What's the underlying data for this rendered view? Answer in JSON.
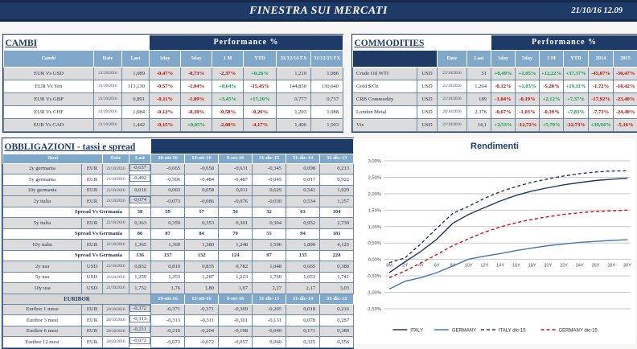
{
  "header": {
    "title": "FINESTRA SUI MERCATI",
    "datetime": "21/10/16 12.09"
  },
  "colors": {
    "navy": "#1e3a67",
    "steel": "#7fa8cb",
    "negative": "#c00000",
    "positive": "#00a050",
    "row_shade": "#dcdcdc",
    "grid": "#c9c9c9"
  },
  "cambi": {
    "title": "CAMBI",
    "perf_label": "Performance  %",
    "columns": [
      "Cambi",
      "Date",
      "Last",
      "1day",
      "5day",
      "1 M",
      "YTD",
      "31/12/14 FX",
      "31/12/15  FX"
    ],
    "rows": [
      [
        "EUR Vs USD",
        "21/10/2016",
        "1,089",
        "-0,47%",
        "-0,73%",
        "-2,37%",
        "+0,26%",
        "1,210",
        "1,086"
      ],
      [
        "EUR Vs Yen",
        "21/10/2016",
        "113,130",
        "-0,57%",
        "-1,04%",
        "+0,64%",
        "-15,45%",
        "144,850",
        "130,640"
      ],
      [
        "EUR Vs GBP",
        "21/10/2016",
        "0,891",
        "-0,11%",
        "-1,09%",
        "+3,45%",
        "+17,20%",
        "0,777",
        "0,737"
      ],
      [
        "EUR Vs CHF",
        "21/10/2016",
        "1,084",
        "-0,12%",
        "-0,30%",
        "-0,58%",
        "-0,26%",
        "1,203",
        "1,088"
      ],
      [
        "EUR Vs CAD",
        "21/10/2016",
        "1,442",
        "-0,15%",
        "+0,05%",
        "-2,08%",
        "-4,17%",
        "1,406",
        "1,503"
      ]
    ]
  },
  "commodities": {
    "title": "COMMODITIES",
    "perf_label": "Performance  %",
    "columns": [
      "Date",
      "Last",
      "1day",
      "5day",
      "1 M",
      "YTD",
      "2014",
      "2015"
    ],
    "rows": [
      [
        "Crude Oil WTI",
        "USD",
        "21/10/2016",
        "51",
        "+0,49%",
        "+1,05%",
        "+12,22%",
        "+37,37%",
        "-45,87%",
        "-30,47%"
      ],
      [
        "Gold $/Oz",
        "USD",
        "21/10/2016",
        "1.264",
        "-0,12%",
        "+1,03%",
        "-5,20%",
        "+19,11%",
        "-1,72%",
        "-10,42%"
      ],
      [
        "CRB Commodity",
        "USD",
        "21/10/2016",
        "189",
        "-1,04%",
        "-0,19%",
        "+2,12%",
        "+7,37%",
        "-17,92%",
        "-23,40%"
      ],
      [
        "London Metal",
        "USD",
        "20/10/2016",
        "2.376",
        "-0,67%",
        "-1,03%",
        "-0,39%",
        "+7,83%",
        "-7,73%",
        "-24,40%"
      ],
      [
        "Vix",
        "USD",
        "21/10/2016",
        "14,1",
        "+2,53%",
        "-12,72%",
        "+5,79%",
        "-22,73%",
        "+39,94%",
        "-5,16%"
      ]
    ]
  },
  "obbligazioni": {
    "title": "OBBLIGAZIONI - tassi e spread",
    "columns": [
      "Tassi",
      "Date",
      "Last",
      "20-ott-16",
      "14-ott-16",
      "9-set-16",
      "31-dic-15",
      "31-dic-14",
      "31-dic-13"
    ],
    "rows": [
      {
        "shade": true,
        "cells": [
          "2y germania",
          "EUR",
          "21/10/2016",
          "- 0,657",
          "-0,665",
          "-0,658",
          "-0,631",
          "-0,345",
          "0,098",
          "0,213"
        ]
      },
      {
        "shade": false,
        "cells": [
          "5y germania",
          "EUR",
          "21/10/2016",
          "- 0,492",
          "-0,506",
          "-0,484",
          "-0,487",
          "-0,045",
          "0,017",
          "0,922"
        ]
      },
      {
        "shade": true,
        "cells": [
          "10y germania",
          "EUR",
          "21/10/2016",
          "0,010",
          "0,003",
          "0,058",
          "0,011",
          "0,629",
          "0,541",
          "1,929"
        ]
      },
      {
        "shade": true,
        "cells": [
          "2y italia",
          "EUR",
          "21/10/2016",
          "- 0,074",
          "-0,073",
          "-0,086",
          "-0,076",
          "-0,030",
          "0,534",
          "1,257"
        ]
      },
      {
        "spread": true,
        "label": "Spread Vs Germania",
        "values": [
          "58",
          "59",
          "57",
          "56",
          "32",
          "63",
          "104"
        ]
      },
      {
        "shade": true,
        "cells": [
          "5y italia",
          "EUR",
          "21/10/2016",
          "0,363",
          "0,359",
          "0,353",
          "0,301",
          "0,304",
          "0,952",
          "2,730"
        ]
      },
      {
        "spread": true,
        "label": "Spread Vs Germania",
        "values": [
          "86",
          "87",
          "84",
          "79",
          "55",
          "94",
          "181"
        ]
      },
      {
        "shade": true,
        "cells": [
          "10y italia",
          "EUR",
          "21/10/2016",
          "1,365",
          "1,369",
          "1,380",
          "1,248",
          "1,596",
          "1,890",
          "4,125"
        ]
      },
      {
        "spread": true,
        "label": "Spread Vs Germania",
        "values": [
          "136",
          "137",
          "132",
          "124",
          "97",
          "135",
          "220"
        ]
      },
      {
        "shade": true,
        "cells": [
          "2y usa",
          "USD",
          "21/10/2016",
          "0,832",
          "0,819",
          "0,835",
          "0,782",
          "1,048",
          "0,665",
          "0,380"
        ]
      },
      {
        "shade": false,
        "cells": [
          "5y usa",
          "USD",
          "21/10/2016",
          "1,259",
          "1,253",
          "1,287",
          "1,223",
          "1,760",
          "1,653",
          "1,741"
        ]
      },
      {
        "shade": true,
        "cells": [
          "10y usa",
          "USD",
          "21/10/2016",
          "1,752",
          "1,76",
          "1,80",
          "1,67",
          "2,27",
          "2,17",
          "3,03"
        ]
      }
    ]
  },
  "euribor": {
    "title": "EURIBOR",
    "columns": [
      "19-ott-16",
      "13-ott-16",
      "9-set-16",
      "31-dic-15",
      "31-dic-14",
      "31-dic-13"
    ],
    "rows": [
      {
        "shade": true,
        "cells": [
          "Euribor 1 mese",
          "EUR",
          "20/10/2016",
          "- 0,372",
          "-0,371",
          "-0,371",
          "-0,369",
          "-0,205",
          "0,018",
          "0,216"
        ]
      },
      {
        "shade": false,
        "cells": [
          "Euribor 3 mesi",
          "EUR",
          "20/10/2016",
          "- 0,313",
          "-0,313",
          "-0,311",
          "-0,301",
          "-0,131",
          "0,078",
          "0,287"
        ]
      },
      {
        "shade": true,
        "cells": [
          "Euribor 6 mesi",
          "EUR",
          "20/10/2016",
          "- 0,211",
          "-0,210",
          "-0,204",
          "-0,198",
          "-0,040",
          "0,171",
          "0,389"
        ]
      },
      {
        "shade": false,
        "cells": [
          "Euribor 12 mesi",
          "EUR",
          "20/10/2016",
          "- 0,073",
          "-0,073",
          "-0,072",
          "-0,057",
          "0,060",
          "0,325",
          "0,556"
        ]
      }
    ]
  },
  "chart_data": {
    "type": "line",
    "title": "Rendimenti",
    "x_categories": [
      "3M",
      "2Y",
      "4Y",
      "6Y",
      "8Y",
      "10Y",
      "12Y",
      "14Y",
      "16Y",
      "18Y",
      "20Y",
      "22Y",
      "24Y",
      "26Y",
      "28Y",
      "30Y"
    ],
    "ylim": [
      -1.5,
      3.0
    ],
    "ytick_step": 0.5,
    "ytick_labels": [
      "3,00%",
      "2,50%",
      "2,00%",
      "1,50%",
      "1,00%",
      "0,50%",
      "0,00%",
      "-0,50%",
      "-1,00%",
      "-1,50%"
    ],
    "grid": true,
    "legend_position": "bottom",
    "series": [
      {
        "name": "ITALY",
        "color": "#1f3864",
        "dashed": false,
        "values": [
          -0.4,
          -0.07,
          0.25,
          0.62,
          1.1,
          1.37,
          1.58,
          1.78,
          1.95,
          2.08,
          2.18,
          2.27,
          2.34,
          2.4,
          2.44,
          2.47
        ]
      },
      {
        "name": "GERMANY",
        "color": "#4577b0",
        "dashed": false,
        "values": [
          -0.9,
          -0.66,
          -0.55,
          -0.4,
          -0.2,
          0.01,
          0.1,
          0.18,
          0.27,
          0.35,
          0.42,
          0.47,
          0.52,
          0.55,
          0.58,
          0.6
        ]
      },
      {
        "name": "ITALY dic-15",
        "color": "#1f3864",
        "dashed": true,
        "values": [
          -0.1,
          0.05,
          0.48,
          0.95,
          1.4,
          1.62,
          1.86,
          2.06,
          2.22,
          2.35,
          2.45,
          2.54,
          2.61,
          2.66,
          2.69,
          2.7
        ]
      },
      {
        "name": "GERMANY dic-15",
        "color": "#cc1111",
        "dashed": true,
        "values": [
          -0.55,
          -0.35,
          -0.1,
          0.15,
          0.42,
          0.63,
          0.83,
          0.99,
          1.12,
          1.22,
          1.3,
          1.37,
          1.42,
          1.46,
          1.48,
          1.5
        ]
      }
    ]
  }
}
